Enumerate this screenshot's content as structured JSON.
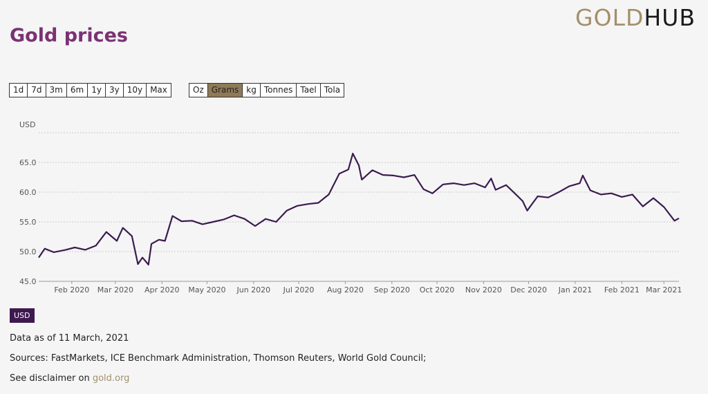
{
  "header": {
    "title": "Gold prices",
    "logo_gold": "GOLD",
    "logo_hub": "HUB"
  },
  "range_buttons": [
    "1d",
    "7d",
    "3m",
    "6m",
    "1y",
    "3y",
    "10y",
    "Max"
  ],
  "unit_buttons": [
    "Oz",
    "Grams",
    "kg",
    "Tonnes",
    "Tael",
    "Tola"
  ],
  "active_unit": "Grams",
  "currency_badge": "USD",
  "footer": {
    "data_as_of": "Data as of 11 March, 2021",
    "sources": "Sources: FastMarkets, ICE Benchmark Administration, Thomson Reuters, World Gold Council;",
    "disclaimer_prefix": "See disclaimer on ",
    "disclaimer_link": "gold.org"
  },
  "colors": {
    "line": "#3b1a4f",
    "title": "#7a3273",
    "active_button": "#8f7a57",
    "badge": "#3d1950",
    "logo_gold": "#a3906a"
  },
  "chart_data": {
    "type": "line",
    "ylabel": "USD",
    "ylim": [
      45,
      70
    ],
    "yticks": [
      45.0,
      50.0,
      55.0,
      60.0,
      65.0
    ],
    "grid": true,
    "x_tick_labels": [
      "Feb 2020",
      "Mar 2020",
      "Apr 2020",
      "May 2020",
      "Jun 2020",
      "Jul 2020",
      "Aug 2020",
      "Sep 2020",
      "Oct 2020",
      "Nov 2020",
      "Dec 2020",
      "Jan 2021",
      "Feb 2021",
      "Mar 2021"
    ],
    "xlim": [
      "2020-01-10",
      "2021-03-11"
    ],
    "series": [
      {
        "x": [
          "2020-01-10",
          "2020-01-14",
          "2020-01-20",
          "2020-01-28",
          "2020-02-03",
          "2020-02-10",
          "2020-02-17",
          "2020-02-24",
          "2020-03-02",
          "2020-03-06",
          "2020-03-12",
          "2020-03-16",
          "2020-03-19",
          "2020-03-23",
          "2020-03-25",
          "2020-03-30",
          "2020-04-03",
          "2020-04-08",
          "2020-04-14",
          "2020-04-21",
          "2020-04-28",
          "2020-05-05",
          "2020-05-12",
          "2020-05-19",
          "2020-05-26",
          "2020-06-02",
          "2020-06-09",
          "2020-06-16",
          "2020-06-23",
          "2020-06-30",
          "2020-07-07",
          "2020-07-14",
          "2020-07-21",
          "2020-07-28",
          "2020-08-03",
          "2020-08-06",
          "2020-08-10",
          "2020-08-12",
          "2020-08-19",
          "2020-08-26",
          "2020-09-02",
          "2020-09-09",
          "2020-09-16",
          "2020-09-22",
          "2020-09-28",
          "2020-10-05",
          "2020-10-12",
          "2020-10-19",
          "2020-10-26",
          "2020-11-02",
          "2020-11-06",
          "2020-11-09",
          "2020-11-16",
          "2020-11-23",
          "2020-11-27",
          "2020-11-30",
          "2020-12-07",
          "2020-12-14",
          "2020-12-21",
          "2020-12-28",
          "2021-01-04",
          "2021-01-06",
          "2021-01-11",
          "2021-01-18",
          "2021-01-25",
          "2021-02-01",
          "2021-02-08",
          "2021-02-15",
          "2021-02-22",
          "2021-03-01",
          "2021-03-08",
          "2021-03-11"
        ],
        "y": [
          49.0,
          50.5,
          49.9,
          50.3,
          50.7,
          50.3,
          51.0,
          53.3,
          51.8,
          54.0,
          52.6,
          47.9,
          49.0,
          47.8,
          51.3,
          52.0,
          51.8,
          56.0,
          55.1,
          55.2,
          54.6,
          55.0,
          55.4,
          56.1,
          55.5,
          54.3,
          55.5,
          55.0,
          56.9,
          57.7,
          58.0,
          58.2,
          59.6,
          63.1,
          63.8,
          66.5,
          64.5,
          62.1,
          63.7,
          62.9,
          62.8,
          62.5,
          62.9,
          60.5,
          59.8,
          61.3,
          61.5,
          61.2,
          61.5,
          60.8,
          62.3,
          60.4,
          61.2,
          59.5,
          58.5,
          56.9,
          59.3,
          59.1,
          60.0,
          61.0,
          61.5,
          62.8,
          60.3,
          59.6,
          59.8,
          59.2,
          59.6,
          57.6,
          59.0,
          57.5,
          55.2,
          55.6
        ]
      }
    ]
  }
}
